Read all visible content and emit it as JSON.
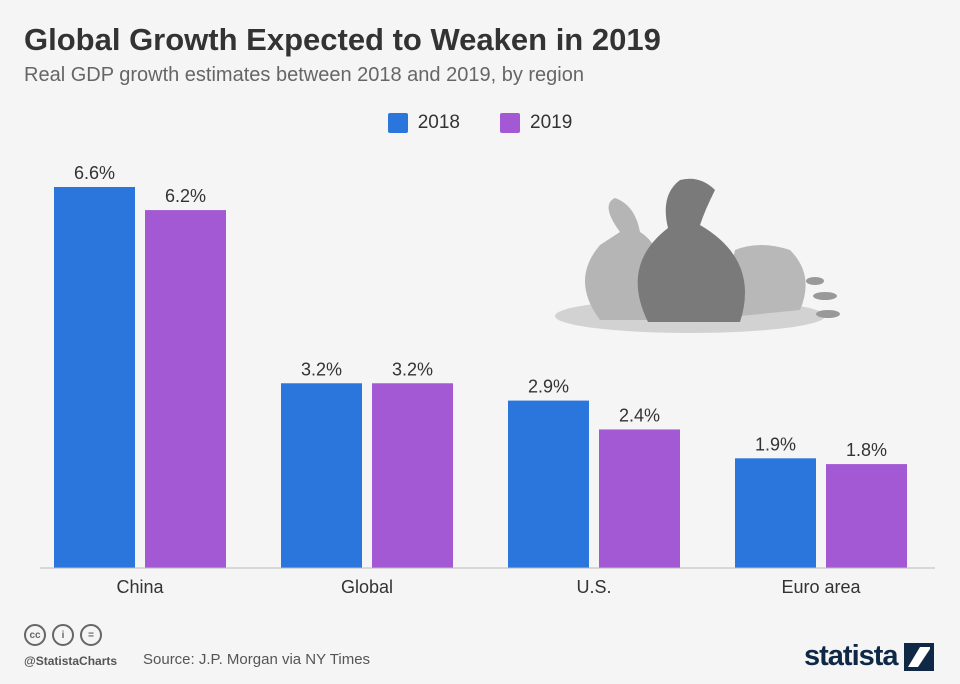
{
  "header": {
    "title": "Global Growth Expected to Weaken in 2019",
    "subtitle": "Real GDP growth estimates between 2018 and 2019, by region"
  },
  "chart_data": {
    "type": "bar",
    "categories": [
      "China",
      "Global",
      "U.S.",
      "Euro area"
    ],
    "series": [
      {
        "name": "2018",
        "color": "#2a76dd",
        "values": [
          6.6,
          3.2,
          2.9,
          1.9
        ],
        "labels": [
          "6.6%",
          "3.2%",
          "2.9%",
          "1.9%"
        ]
      },
      {
        "name": "2019",
        "color": "#a259d3",
        "values": [
          6.2,
          3.2,
          2.4,
          1.8
        ],
        "labels": [
          "6.2%",
          "3.2%",
          "2.4%",
          "1.8%"
        ]
      }
    ],
    "ylim": [
      0,
      6.6
    ],
    "grid": false,
    "legend": "top-center",
    "unit": "%"
  },
  "illustration": {
    "icon": "money-bags-icon"
  },
  "footer": {
    "handle": "@StatistaCharts",
    "source": "Source: J.P. Morgan via NY Times",
    "logo": "statista",
    "cc_icons": [
      "cc",
      "by",
      "nd"
    ]
  }
}
